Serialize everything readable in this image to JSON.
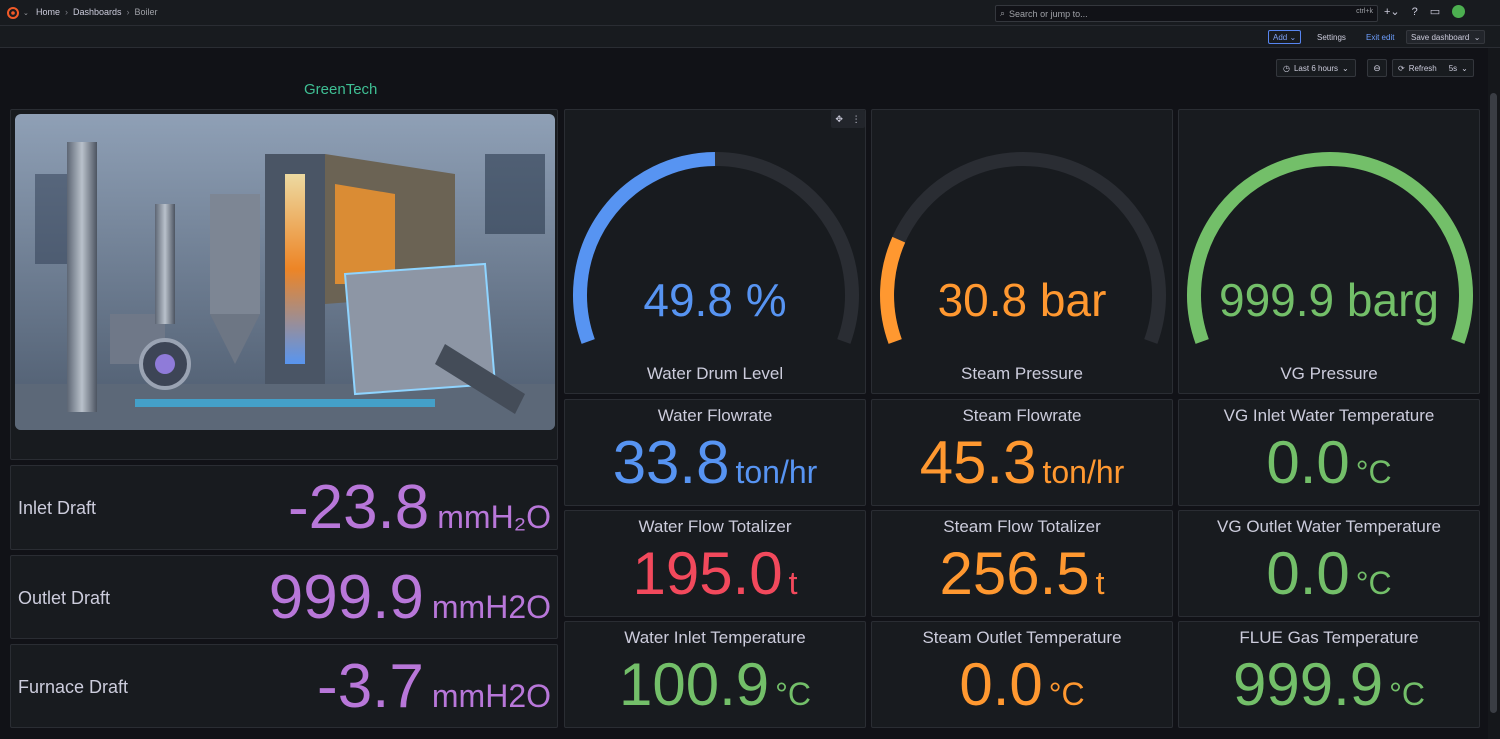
{
  "breadcrumb": {
    "home": "Home",
    "dashboards": "Dashboards",
    "current": "Boiler"
  },
  "search": {
    "placeholder": "Search or jump to...",
    "shortcut": "ctrl+k"
  },
  "toolbar": {
    "add_label": "Add",
    "settings_label": "Settings",
    "exit_label": "Exit edit",
    "save_label": "Save dashboard"
  },
  "time": {
    "range": "Last 6 hours",
    "refresh_label": "Refresh",
    "refresh_interval": "5s"
  },
  "brand_text": "GreenTech",
  "gauges": [
    {
      "title": "Water Drum Level",
      "value": "49.8",
      "unit": "%",
      "fraction": 0.498,
      "color": "#5794f2"
    },
    {
      "title": "Steam Pressure",
      "value": "30.8",
      "unit": "bar",
      "fraction": 0.2,
      "color": "#ff9830"
    },
    {
      "title": "VG Pressure",
      "value": "999.9",
      "unit": "barg",
      "fraction": 1.0,
      "color": "#73bf69"
    }
  ],
  "stats": [
    {
      "title": "Water Flowrate",
      "value": "33.8",
      "unit": "ton/hr",
      "color": "blue"
    },
    {
      "title": "Steam Flowrate",
      "value": "45.3",
      "unit": "ton/hr",
      "color": "orange"
    },
    {
      "title": "VG Inlet Water Temperature",
      "value": "0.0",
      "unit": "°C",
      "color": "green"
    },
    {
      "title": "Water Flow Totalizer",
      "value": "195.0",
      "unit": "t",
      "color": "red"
    },
    {
      "title": "Steam Flow Totalizer",
      "value": "256.5",
      "unit": "t",
      "color": "orange"
    },
    {
      "title": "VG Outlet Water Temperature",
      "value": "0.0",
      "unit": "°C",
      "color": "green"
    },
    {
      "title": "Water Inlet Temperature",
      "value": "100.9",
      "unit": "°C",
      "color": "green"
    },
    {
      "title": "Steam Outlet Temperature",
      "value": "0.0",
      "unit": "°C",
      "color": "orange"
    },
    {
      "title": "FLUE Gas Temperature",
      "value": "999.9",
      "unit": "°C",
      "color": "green"
    }
  ],
  "drafts": [
    {
      "label": "Inlet Draft",
      "value": "-23.8",
      "unit": "mmH₂O"
    },
    {
      "label": "Outlet Draft",
      "value": "999.9",
      "unit": "mmH2O"
    },
    {
      "label": "Furnace Draft",
      "value": "-3.7",
      "unit": "mmH2O"
    }
  ]
}
